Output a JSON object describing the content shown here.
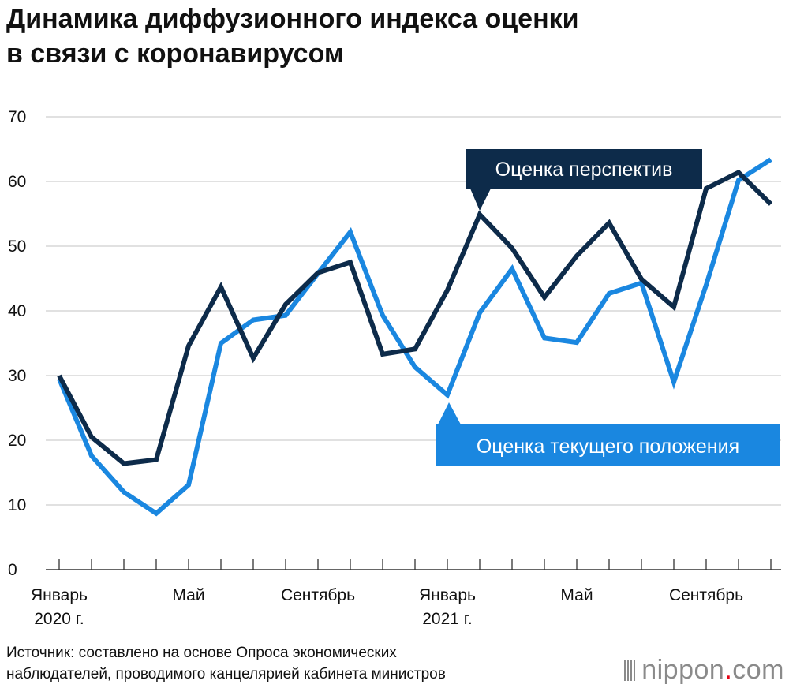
{
  "title_lines": [
    "Динамика диффузионного индекса оценки",
    "в связи с коронавирусом"
  ],
  "source_lines": [
    "Источник: составлено на основе Опроса экономических",
    "наблюдателей, проводимого канцелярией кабинета министров"
  ],
  "brand": {
    "name": "nippon",
    "dot": ".",
    "suffix": "com"
  },
  "colors": {
    "outlook": "#0d2b4a",
    "current": "#1a87e0",
    "grid": "#cfcfcf",
    "axis": "#333333"
  },
  "chart_data": {
    "type": "line",
    "title": "Динамика диффузионного индекса оценки в связи с коронавирусом",
    "ylim": [
      0,
      70
    ],
    "yticks": [
      0,
      10,
      20,
      30,
      40,
      50,
      60,
      70
    ],
    "x_tick_labels": [
      {
        "index": 0,
        "lines": [
          "Январь",
          "2020 г."
        ]
      },
      {
        "index": 4,
        "lines": [
          "Май"
        ]
      },
      {
        "index": 8,
        "lines": [
          "Сентябрь"
        ]
      },
      {
        "index": 12,
        "lines": [
          "Январь",
          "2021 г."
        ]
      },
      {
        "index": 16,
        "lines": [
          "Май"
        ]
      },
      {
        "index": 20,
        "lines": [
          "Сентябрь"
        ]
      }
    ],
    "n_points": 23,
    "grid": true,
    "series": [
      {
        "name": "Оценка перспектив",
        "color": "#0d2b4a",
        "values": [
          30.0,
          20.5,
          16.4,
          17.0,
          34.6,
          43.7,
          32.7,
          41.0,
          45.9,
          47.5,
          33.3,
          34.1,
          43.2,
          54.9,
          49.7,
          42.1,
          48.5,
          53.6,
          44.9,
          40.6,
          58.9,
          61.4,
          56.5
        ]
      },
      {
        "name": "Оценка текущего положения",
        "color": "#1a87e0",
        "values": [
          29.5,
          17.6,
          12.0,
          8.7,
          13.1,
          35.0,
          38.6,
          39.3,
          45.8,
          52.2,
          39.3,
          31.3,
          27.0,
          39.7,
          46.5,
          35.8,
          35.1,
          42.7,
          44.3,
          29.0,
          44.0,
          60.2,
          63.4
        ]
      }
    ]
  }
}
